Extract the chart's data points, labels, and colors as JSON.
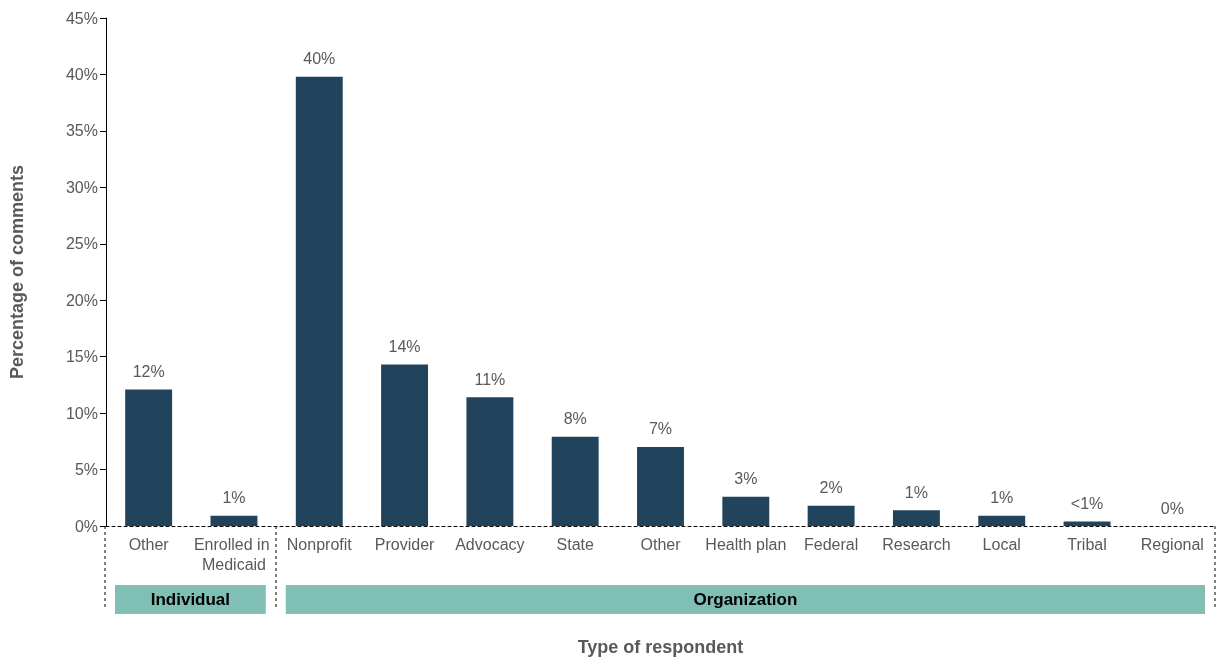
{
  "chart_data": {
    "type": "bar",
    "xlabel": "Type of respondent",
    "ylabel": "Percentage of comments",
    "categories": [
      "Other",
      "Enrolled in Medicaid",
      "Nonprofit",
      "Provider",
      "Advocacy",
      "State",
      "Other",
      "Health plan",
      "Federal",
      "Research",
      "Local",
      "Tribal",
      "Regional"
    ],
    "values": [
      12.1,
      0.9,
      39.8,
      14.3,
      11.4,
      7.9,
      7.0,
      2.6,
      1.8,
      1.4,
      0.9,
      0.4,
      0
    ],
    "value_labels": [
      "12%",
      "1%",
      "40%",
      "14%",
      "11%",
      "8%",
      "7%",
      "3%",
      "2%",
      "1%",
      "1%",
      "<1%",
      "0%"
    ],
    "color": "#21445c",
    "ylim": [
      0,
      45
    ],
    "yticks": [
      {
        "value": 0,
        "label": "0%"
      },
      {
        "value": 5,
        "label": "5%"
      },
      {
        "value": 10,
        "label": "10%"
      },
      {
        "value": 15,
        "label": "15%"
      },
      {
        "value": 20,
        "label": "20%"
      },
      {
        "value": 25,
        "label": "25%"
      },
      {
        "value": 30,
        "label": "30%"
      },
      {
        "value": 35,
        "label": "35%"
      },
      {
        "value": 40,
        "label": "40%"
      },
      {
        "value": 45,
        "label": "45%"
      }
    ],
    "annotations": [
      "Individual",
      "Organization"
    ],
    "grid": false
  }
}
